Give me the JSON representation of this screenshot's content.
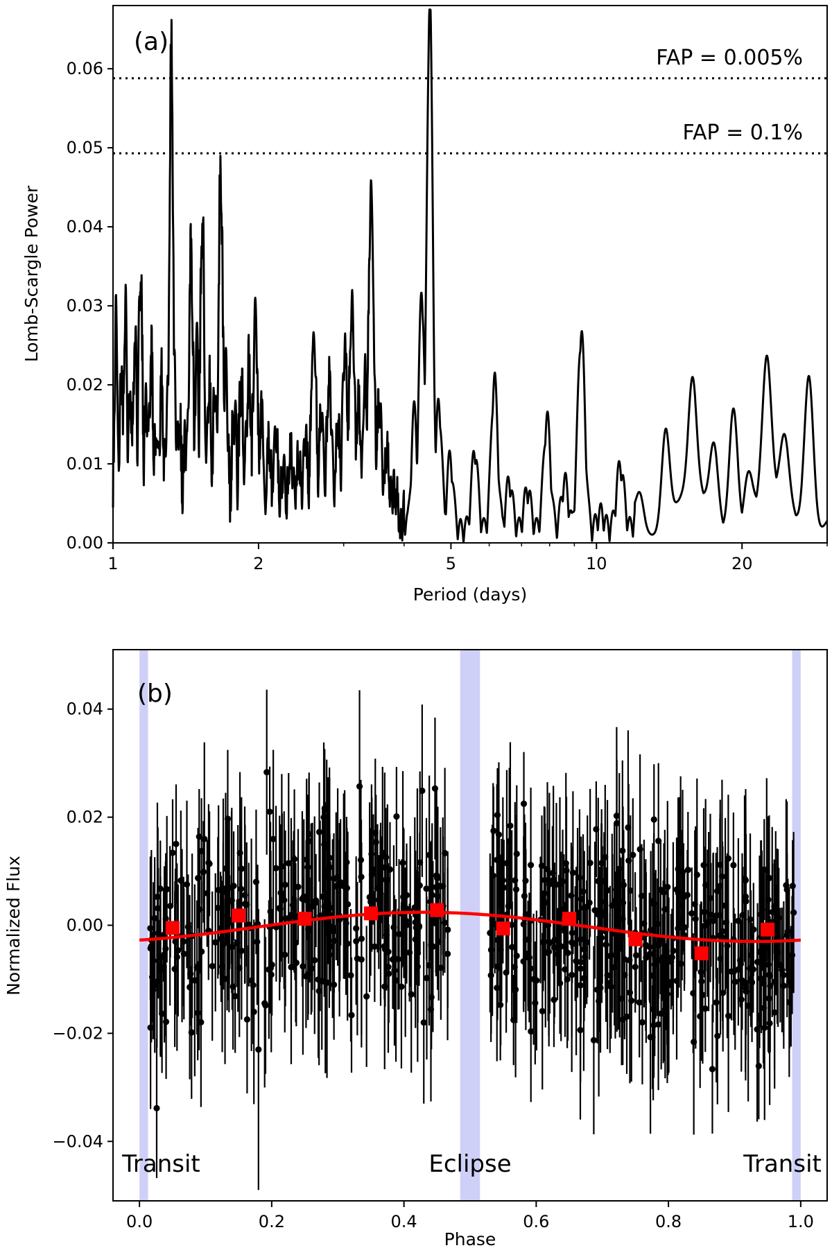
{
  "chart_data": [
    {
      "panel": "(a)",
      "type": "line",
      "xlabel": "Period (days)",
      "ylabel": "Lomb-Scargle Power",
      "xscale": "log",
      "xlim": [
        1,
        30
      ],
      "ylim": [
        0,
        0.068
      ],
      "xticks": [
        1,
        2,
        5,
        10,
        20
      ],
      "xtick_labels": [
        "1",
        "2",
        "5",
        "10",
        "20"
      ],
      "yticks": [
        0,
        0.01,
        0.02,
        0.03,
        0.04,
        0.05,
        0.06
      ],
      "ytick_labels": [
        "0.00",
        "0.01",
        "0.02",
        "0.03",
        "0.04",
        "0.05",
        "0.06"
      ],
      "color": "#000000",
      "thresholds": [
        {
          "label": "FAP = 0.005%",
          "value": 0.0588
        },
        {
          "label": "FAP = 0.1%",
          "value": 0.0493
        }
      ],
      "series": [
        {
          "peaks": [
            {
              "period": 1.015,
              "power": 0.024
            },
            {
              "period": 1.04,
              "power": 0.018
            },
            {
              "period": 1.06,
              "power": 0.025
            },
            {
              "period": 1.085,
              "power": 0.016
            },
            {
              "period": 1.11,
              "power": 0.022
            },
            {
              "period": 1.14,
              "power": 0.031
            },
            {
              "period": 1.17,
              "power": 0.015
            },
            {
              "period": 1.2,
              "power": 0.02
            },
            {
              "period": 1.23,
              "power": 0.012
            },
            {
              "period": 1.26,
              "power": 0.016
            },
            {
              "period": 1.3,
              "power": 0.02
            },
            {
              "period": 1.32,
              "power": 0.058
            },
            {
              "period": 1.34,
              "power": 0.016
            },
            {
              "period": 1.37,
              "power": 0.012
            },
            {
              "period": 1.41,
              "power": 0.009
            },
            {
              "period": 1.45,
              "power": 0.033
            },
            {
              "period": 1.49,
              "power": 0.02
            },
            {
              "period": 1.53,
              "power": 0.037
            },
            {
              "period": 1.58,
              "power": 0.016
            },
            {
              "period": 1.63,
              "power": 0.018
            },
            {
              "period": 1.67,
              "power": 0.043
            },
            {
              "period": 1.71,
              "power": 0.019
            },
            {
              "period": 1.78,
              "power": 0.012
            },
            {
              "period": 1.84,
              "power": 0.016
            },
            {
              "period": 1.91,
              "power": 0.018
            },
            {
              "period": 1.97,
              "power": 0.026
            },
            {
              "period": 2.03,
              "power": 0.014
            },
            {
              "period": 2.1,
              "power": 0.01
            },
            {
              "period": 2.17,
              "power": 0.012
            },
            {
              "period": 2.25,
              "power": 0.006
            },
            {
              "period": 2.33,
              "power": 0.009
            },
            {
              "period": 2.42,
              "power": 0.008
            },
            {
              "period": 2.5,
              "power": 0.011
            },
            {
              "period": 2.6,
              "power": 0.026
            },
            {
              "period": 2.7,
              "power": 0.014
            },
            {
              "period": 2.8,
              "power": 0.018
            },
            {
              "period": 2.92,
              "power": 0.012
            },
            {
              "period": 3.02,
              "power": 0.022
            },
            {
              "period": 3.12,
              "power": 0.028
            },
            {
              "period": 3.22,
              "power": 0.015
            },
            {
              "period": 3.32,
              "power": 0.018
            },
            {
              "period": 3.42,
              "power": 0.042
            },
            {
              "period": 3.55,
              "power": 0.015
            },
            {
              "period": 3.68,
              "power": 0.009
            },
            {
              "period": 3.82,
              "power": 0.004
            },
            {
              "period": 4.05,
              "power": 0.001
            },
            {
              "period": 4.2,
              "power": 0.015
            },
            {
              "period": 4.35,
              "power": 0.03
            },
            {
              "period": 4.52,
              "power": 0.067
            },
            {
              "period": 4.72,
              "power": 0.016
            },
            {
              "period": 4.98,
              "power": 0.009
            },
            {
              "period": 5.6,
              "power": 0.01
            },
            {
              "period": 6.15,
              "power": 0.019
            },
            {
              "period": 6.6,
              "power": 0.006
            },
            {
              "period": 7.2,
              "power": 0.005
            },
            {
              "period": 7.9,
              "power": 0.014
            },
            {
              "period": 8.6,
              "power": 0.006
            },
            {
              "period": 9.3,
              "power": 0.025
            },
            {
              "period": 10.2,
              "power": 0.002
            },
            {
              "period": 11.2,
              "power": 0.008
            },
            {
              "period": 12.3,
              "power": 0.004
            },
            {
              "period": 13.9,
              "power": 0.012
            },
            {
              "period": 15.8,
              "power": 0.014
            },
            {
              "period": 17.5,
              "power": 0.009
            },
            {
              "period": 19.2,
              "power": 0.016
            },
            {
              "period": 20.6,
              "power": 0.006
            },
            {
              "period": 22.5,
              "power": 0.017
            },
            {
              "period": 24.5,
              "power": 0.008
            },
            {
              "period": 27.5,
              "power": 0.02
            }
          ]
        }
      ]
    },
    {
      "panel": "(b)",
      "type": "scatter",
      "xlabel": "Phase",
      "ylabel": "Normalized Flux",
      "xlim": [
        -0.04,
        1.04
      ],
      "ylim": [
        -0.051,
        0.051
      ],
      "xticks": [
        0,
        0.2,
        0.4,
        0.6,
        0.8,
        1.0
      ],
      "xtick_labels": [
        "0.0",
        "0.2",
        "0.4",
        "0.6",
        "0.8",
        "1.0"
      ],
      "yticks": [
        -0.04,
        -0.02,
        0,
        0.02,
        0.04
      ],
      "ytick_labels": [
        "−0.04",
        "−0.02",
        "0.00",
        "0.02",
        "0.04"
      ],
      "colors": {
        "points": "#000000",
        "binned": "#ff0000",
        "model": "#ff0000",
        "bands": "#cfd0f7"
      },
      "shaded_regions": [
        {
          "label": "Transit",
          "x0": 0.0,
          "x1": 0.013,
          "label_anchor": "start"
        },
        {
          "label": "Eclipse",
          "x0": 0.485,
          "x1": 0.515,
          "label_anchor": "middle"
        },
        {
          "label": "Transit",
          "x0": 0.987,
          "x1": 1.0,
          "label_anchor": "end"
        }
      ],
      "model": {
        "mean": -0.0003,
        "amplitude": 0.0027,
        "peak_phase": 0.43
      },
      "binned": {
        "x": [
          0.05,
          0.15,
          0.25,
          0.35,
          0.45,
          0.55,
          0.65,
          0.75,
          0.85,
          0.95
        ],
        "y": [
          -0.0005,
          0.0018,
          0.0012,
          0.0022,
          0.0028,
          -0.0006,
          0.0012,
          -0.0026,
          -0.0052,
          -0.0008
        ]
      },
      "scatter": {
        "count": 700,
        "x_range": [
          0.015,
          0.99
        ],
        "scatter_sd": 0.009,
        "error_range": [
          0.008,
          0.018
        ]
      }
    }
  ]
}
